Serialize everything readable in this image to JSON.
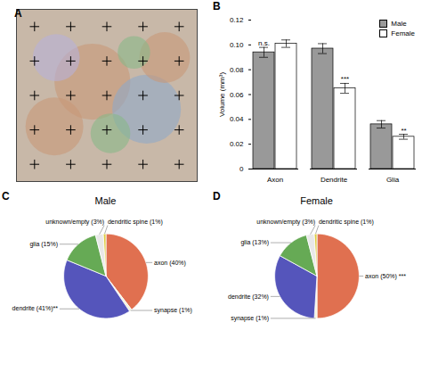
{
  "chart_data": [
    {
      "panel": "A",
      "type": "scatter",
      "xlim": [
        0,
        10
      ],
      "ylim": [
        0,
        10
      ],
      "xticks": [],
      "yticks": [],
      "tick_labels": false,
      "color": "#c8b8a8",
      "series": [
        {
          "type": "bubble",
          "x": [
            4.2,
            7.2,
            2.1,
            5.2,
            8.2,
            2.2,
            6.5
          ],
          "y": [
            5.8,
            4.2,
            3.2,
            2.8,
            7.2,
            7.2,
            7.5
          ],
          "sizes": [
            2.1,
            1.9,
            1.6,
            1.1,
            1.4,
            1.3,
            0.9
          ],
          "colors": [
            "#c89878",
            "#90a8c8",
            "#c89878",
            "#88b888",
            "#c89878",
            "#b8b0d8",
            "#88b888"
          ]
        },
        {
          "type": "scatter",
          "marker": "+",
          "color": "#000000",
          "x": [
            1,
            3,
            5,
            7,
            9,
            1,
            3,
            5,
            7,
            9,
            1,
            3,
            5,
            7,
            9,
            1,
            3,
            5,
            7,
            9,
            1,
            3,
            5,
            7,
            9
          ],
          "y": [
            9,
            9,
            9,
            9,
            9,
            7,
            7,
            7,
            7,
            7,
            5,
            5,
            5,
            5,
            5,
            3,
            3,
            3,
            3,
            3,
            1,
            1,
            1,
            1,
            1
          ]
        }
      ]
    },
    {
      "panel": "B",
      "type": "bar",
      "categories": [
        "Axon",
        "Dendrite",
        "Glia"
      ],
      "series": [
        {
          "name": "Male",
          "color": "#999999",
          "values": [
            0.094,
            0.097,
            0.036
          ],
          "errors": [
            0.004,
            0.004,
            0.003
          ]
        },
        {
          "name": "Female",
          "color": "#ffffff",
          "values": [
            0.101,
            0.065,
            0.026
          ],
          "errors": [
            0.003,
            0.004,
            0.002
          ]
        }
      ],
      "ylabel": "Volume (mm³)",
      "ylim": [
        0,
        0.12
      ],
      "yticks": [
        0,
        0.02,
        0.04,
        0.06,
        0.08,
        {
          "value": 0.1,
          "label": "0.10"
        },
        0.12
      ],
      "grid": false,
      "legend": "upper right",
      "annotations": [
        {
          "text": "n.s.",
          "category": "Axon",
          "series": "Male"
        },
        {
          "text": "***",
          "category": "Dendrite",
          "series": "Female"
        },
        {
          "text": "**",
          "category": "Glia",
          "series": "Female"
        }
      ]
    },
    {
      "panel": "C",
      "type": "pie",
      "title": "Male",
      "values": [
        40,
        1,
        41,
        15,
        3,
        1
      ],
      "value_labels": [
        "axon (40%)",
        "synapse (1%)",
        "dendrite (41%)**",
        "glia (15%)",
        "unknown/empty (3%)",
        "dendritic spine (1%)"
      ],
      "colors": [
        "#E07050",
        "#f5f5dc",
        "#5555BB",
        "#66AA55",
        "#e8e8e8",
        "#DDCC44"
      ],
      "data_labels": true
    },
    {
      "panel": "D",
      "type": "pie",
      "title": "Female",
      "values": [
        50,
        1,
        32,
        13,
        3,
        1
      ],
      "value_labels": [
        "axon (50%) ***",
        "synapse (1%)",
        "dendrite (32%)",
        "glia (13%)",
        "unknown/empty (3%)",
        "dendritic spine (1%)"
      ],
      "colors": [
        "#E07050",
        "#f5f5dc",
        "#5555BB",
        "#66AA55",
        "#e8e8e8",
        "#DDCC44"
      ],
      "data_labels": true
    }
  ]
}
